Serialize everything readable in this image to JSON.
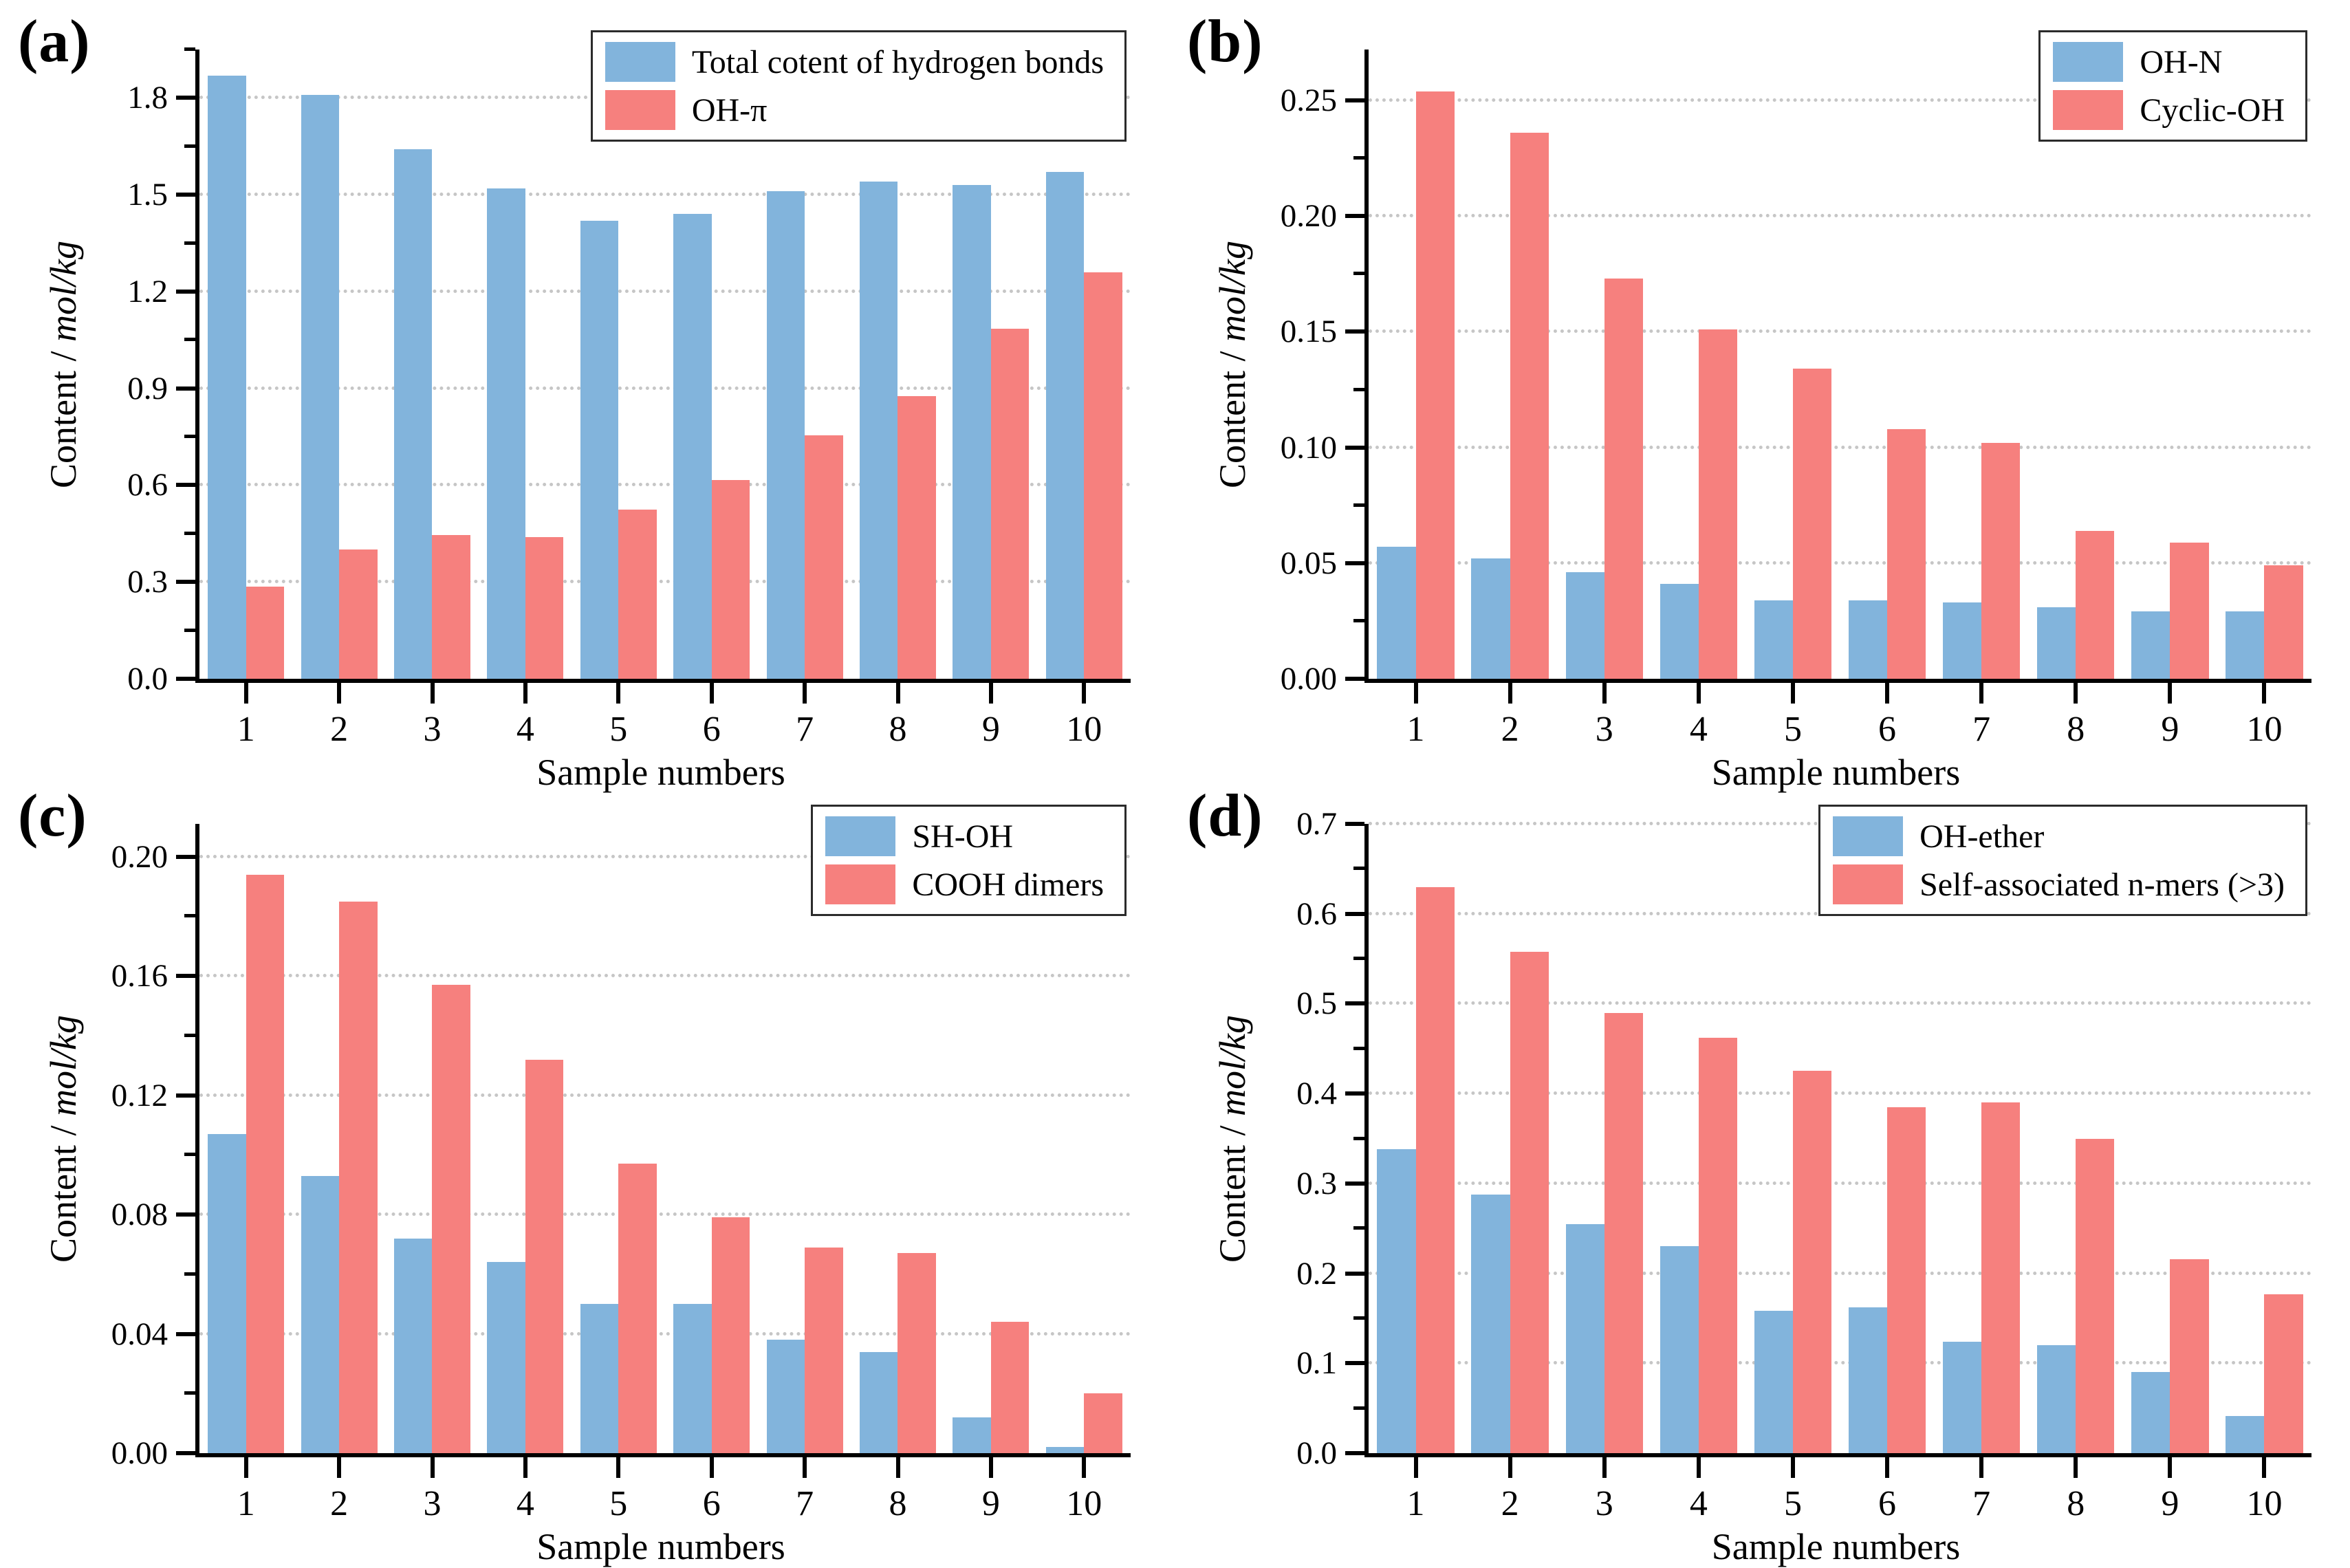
{
  "chart_data": [
    {
      "panel_label": "(a)",
      "type": "bar",
      "categories": [
        "1",
        "2",
        "3",
        "4",
        "5",
        "6",
        "7",
        "8",
        "9",
        "10"
      ],
      "series": [
        {
          "name": "Total cotent of hydrogen bonds",
          "color": "#82B4DC",
          "values": [
            1.87,
            1.81,
            1.64,
            1.52,
            1.42,
            1.44,
            1.51,
            1.54,
            1.53,
            1.57
          ]
        },
        {
          "name": "OH-π",
          "color": "#F6807E",
          "values": [
            0.285,
            0.4,
            0.445,
            0.44,
            0.525,
            0.615,
            0.755,
            0.875,
            1.085,
            1.26
          ]
        }
      ],
      "xlabel": "Sample numbers",
      "ylabel_prefix": "Content / ",
      "ylabel_unit": "mol/kg",
      "ylim": [
        0,
        1.95
      ],
      "yticks": [
        {
          "v": 0.0,
          "label": "0.0"
        },
        {
          "v": 0.3,
          "label": "0.3"
        },
        {
          "v": 0.6,
          "label": "0.6"
        },
        {
          "v": 0.9,
          "label": "0.9"
        },
        {
          "v": 1.2,
          "label": "1.2"
        },
        {
          "v": 1.5,
          "label": "1.5"
        },
        {
          "v": 1.8,
          "label": "1.8"
        }
      ],
      "yminor": [
        0.15,
        0.45,
        0.75,
        1.05,
        1.35,
        1.65,
        1.95
      ],
      "grid": "dotted-horizontal",
      "legend_position": "top-right"
    },
    {
      "panel_label": "(b)",
      "type": "bar",
      "categories": [
        "1",
        "2",
        "3",
        "4",
        "5",
        "6",
        "7",
        "8",
        "9",
        "10"
      ],
      "series": [
        {
          "name": "OH-N",
          "color": "#82B4DC",
          "values": [
            0.057,
            0.052,
            0.046,
            0.041,
            0.034,
            0.034,
            0.033,
            0.031,
            0.029,
            0.029
          ]
        },
        {
          "name": "Cyclic-OH",
          "color": "#F6807E",
          "values": [
            0.254,
            0.236,
            0.173,
            0.151,
            0.134,
            0.108,
            0.102,
            0.064,
            0.059,
            0.049
          ]
        }
      ],
      "xlabel": "Sample numbers",
      "ylabel_prefix": "Content / ",
      "ylabel_unit": "mol/kg",
      "ylim": [
        0,
        0.272
      ],
      "yticks": [
        {
          "v": 0.0,
          "label": "0.00"
        },
        {
          "v": 0.05,
          "label": "0.05"
        },
        {
          "v": 0.1,
          "label": "0.10"
        },
        {
          "v": 0.15,
          "label": "0.15"
        },
        {
          "v": 0.2,
          "label": "0.20"
        },
        {
          "v": 0.25,
          "label": "0.25"
        }
      ],
      "yminor": [
        0.025,
        0.075,
        0.125,
        0.175,
        0.225
      ],
      "grid": "dotted-horizontal",
      "legend_position": "top-right"
    },
    {
      "panel_label": "(c)",
      "type": "bar",
      "categories": [
        "1",
        "2",
        "3",
        "4",
        "5",
        "6",
        "7",
        "8",
        "9",
        "10"
      ],
      "series": [
        {
          "name": "SH-OH",
          "color": "#82B4DC",
          "values": [
            0.107,
            0.093,
            0.072,
            0.064,
            0.05,
            0.05,
            0.038,
            0.034,
            0.012,
            0.002
          ]
        },
        {
          "name": "COOH dimers",
          "color": "#F6807E",
          "values": [
            0.194,
            0.185,
            0.157,
            0.132,
            0.097,
            0.079,
            0.069,
            0.067,
            0.044,
            0.02
          ]
        }
      ],
      "xlabel": "Sample numbers",
      "ylabel_prefix": "Content / ",
      "ylabel_unit": "mol/kg",
      "ylim": [
        0,
        0.211
      ],
      "yticks": [
        {
          "v": 0.0,
          "label": "0.00"
        },
        {
          "v": 0.04,
          "label": "0.04"
        },
        {
          "v": 0.08,
          "label": "0.08"
        },
        {
          "v": 0.12,
          "label": "0.12"
        },
        {
          "v": 0.16,
          "label": "0.16"
        },
        {
          "v": 0.2,
          "label": "0.20"
        }
      ],
      "yminor": [
        0.02,
        0.06,
        0.1,
        0.14,
        0.18
      ],
      "grid": "dotted-horizontal",
      "legend_position": "top-right"
    },
    {
      "panel_label": "(d)",
      "type": "bar",
      "categories": [
        "1",
        "2",
        "3",
        "4",
        "5",
        "6",
        "7",
        "8",
        "9",
        "10"
      ],
      "series": [
        {
          "name": "OH-ether",
          "color": "#82B4DC",
          "values": [
            0.338,
            0.288,
            0.255,
            0.23,
            0.158,
            0.162,
            0.124,
            0.12,
            0.09,
            0.041
          ]
        },
        {
          "name": "Self-associated n-mers (>3)",
          "color": "#F6807E",
          "values": [
            0.63,
            0.558,
            0.49,
            0.462,
            0.425,
            0.385,
            0.39,
            0.35,
            0.216,
            0.177
          ]
        }
      ],
      "xlabel": "Sample numbers",
      "ylabel_prefix": "Content / ",
      "ylabel_unit": "mol/kg",
      "ylim": [
        0,
        0.7
      ],
      "yticks": [
        {
          "v": 0.0,
          "label": "0.0"
        },
        {
          "v": 0.1,
          "label": "0.1"
        },
        {
          "v": 0.2,
          "label": "0.2"
        },
        {
          "v": 0.3,
          "label": "0.3"
        },
        {
          "v": 0.4,
          "label": "0.4"
        },
        {
          "v": 0.5,
          "label": "0.5"
        },
        {
          "v": 0.6,
          "label": "0.6"
        },
        {
          "v": 0.7,
          "label": "0.7"
        }
      ],
      "yminor": [
        0.05,
        0.15,
        0.25,
        0.35,
        0.45,
        0.55,
        0.65
      ],
      "grid": "dotted-horizontal",
      "legend_position": "top-right"
    }
  ]
}
